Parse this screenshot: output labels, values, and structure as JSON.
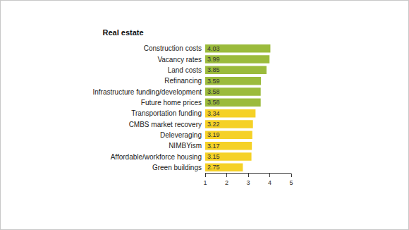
{
  "chart_data": {
    "type": "bar",
    "title": "Real estate",
    "orientation": "horizontal",
    "categories": [
      "Construction costs",
      "Vacancy rates",
      "Land costs",
      "Refinancing",
      "Infrastructure funding/development",
      "Future home prices",
      "Transportation funding",
      "CMBS market recovery",
      "Deleveraging",
      "NIMBYism",
      "Affordable/workforce housing",
      "Green buildings"
    ],
    "values": [
      4.03,
      3.99,
      3.85,
      3.59,
      3.58,
      3.58,
      3.34,
      3.22,
      3.19,
      3.17,
      3.15,
      2.75
    ],
    "colors": [
      "#9bbb3c",
      "#9bbb3c",
      "#9bbb3c",
      "#9bbb3c",
      "#9bbb3c",
      "#9bbb3c",
      "#f5d126",
      "#f5d126",
      "#f5d126",
      "#f5d126",
      "#f5d126",
      "#f5d126"
    ],
    "xlim": [
      1,
      5
    ],
    "xticks": [
      1,
      2,
      3,
      4,
      5
    ],
    "grid": false,
    "data_labels": true
  }
}
